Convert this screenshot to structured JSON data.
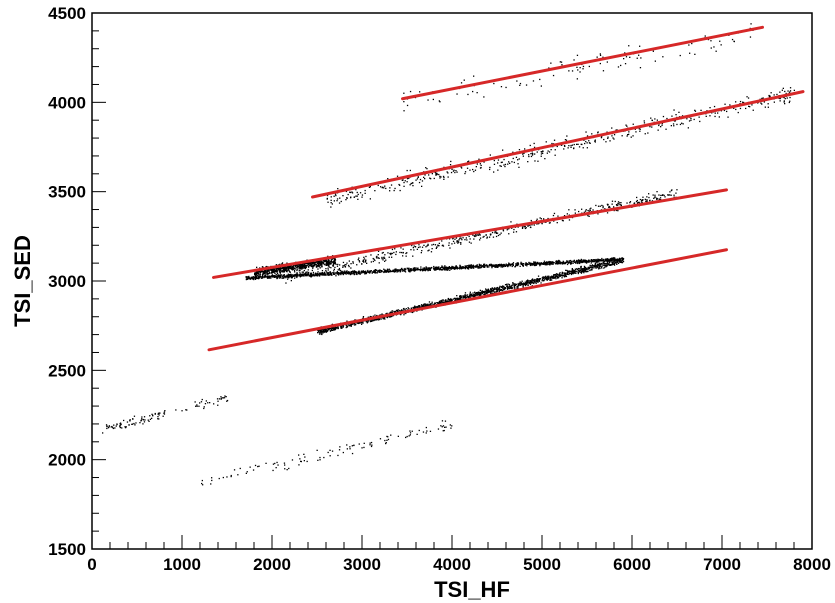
{
  "chart_data": {
    "type": "scatter",
    "xlabel": "TSI_HF",
    "ylabel": "TSI_SED",
    "xlim": [
      0,
      8000
    ],
    "ylim": [
      1500,
      4500
    ],
    "x_ticks": [
      0,
      1000,
      2000,
      3000,
      4000,
      5000,
      6000,
      7000,
      8000
    ],
    "y_ticks": [
      1500,
      2000,
      2500,
      3000,
      3500,
      4000,
      4500
    ],
    "grid": false,
    "legend": "none",
    "colors": {
      "points": "#000000",
      "fit_lines": "#d62828",
      "frame": "#000000",
      "background": "#ffffff"
    },
    "scatter_bands": [
      {
        "x0": 1700,
        "y0": 3020,
        "x1": 5900,
        "y1": 3125,
        "spread": 15,
        "density": "very dense"
      },
      {
        "x0": 1800,
        "y0": 3050,
        "x1": 2700,
        "y1": 3120,
        "spread": 35,
        "density": "dense"
      },
      {
        "x0": 2500,
        "y0": 2720,
        "x1": 5900,
        "y1": 3120,
        "spread": 25,
        "density": "very dense"
      },
      {
        "x0": 2100,
        "y0": 3020,
        "x1": 6500,
        "y1": 3500,
        "spread": 45,
        "density": "medium"
      },
      {
        "x0": 2600,
        "y0": 3460,
        "x1": 7800,
        "y1": 4050,
        "spread": 70,
        "density": "medium"
      },
      {
        "x0": 3400,
        "y0": 4000,
        "x1": 7400,
        "y1": 4400,
        "spread": 90,
        "density": "sparse"
      },
      {
        "x0": 100,
        "y0": 2170,
        "x1": 1500,
        "y1": 2350,
        "spread": 45,
        "density": "sparse"
      },
      {
        "x0": 1200,
        "y0": 1880,
        "x1": 4000,
        "y1": 2200,
        "spread": 45,
        "density": "sparse"
      }
    ],
    "fit_lines": [
      {
        "x": [
          3450,
          7450
        ],
        "y": [
          4020,
          4420
        ]
      },
      {
        "x": [
          2450,
          7900
        ],
        "y": [
          3470,
          4060
        ]
      },
      {
        "x": [
          1350,
          7050
        ],
        "y": [
          3020,
          3510
        ]
      },
      {
        "x": [
          1300,
          7050
        ],
        "y": [
          2615,
          3175
        ]
      }
    ]
  }
}
